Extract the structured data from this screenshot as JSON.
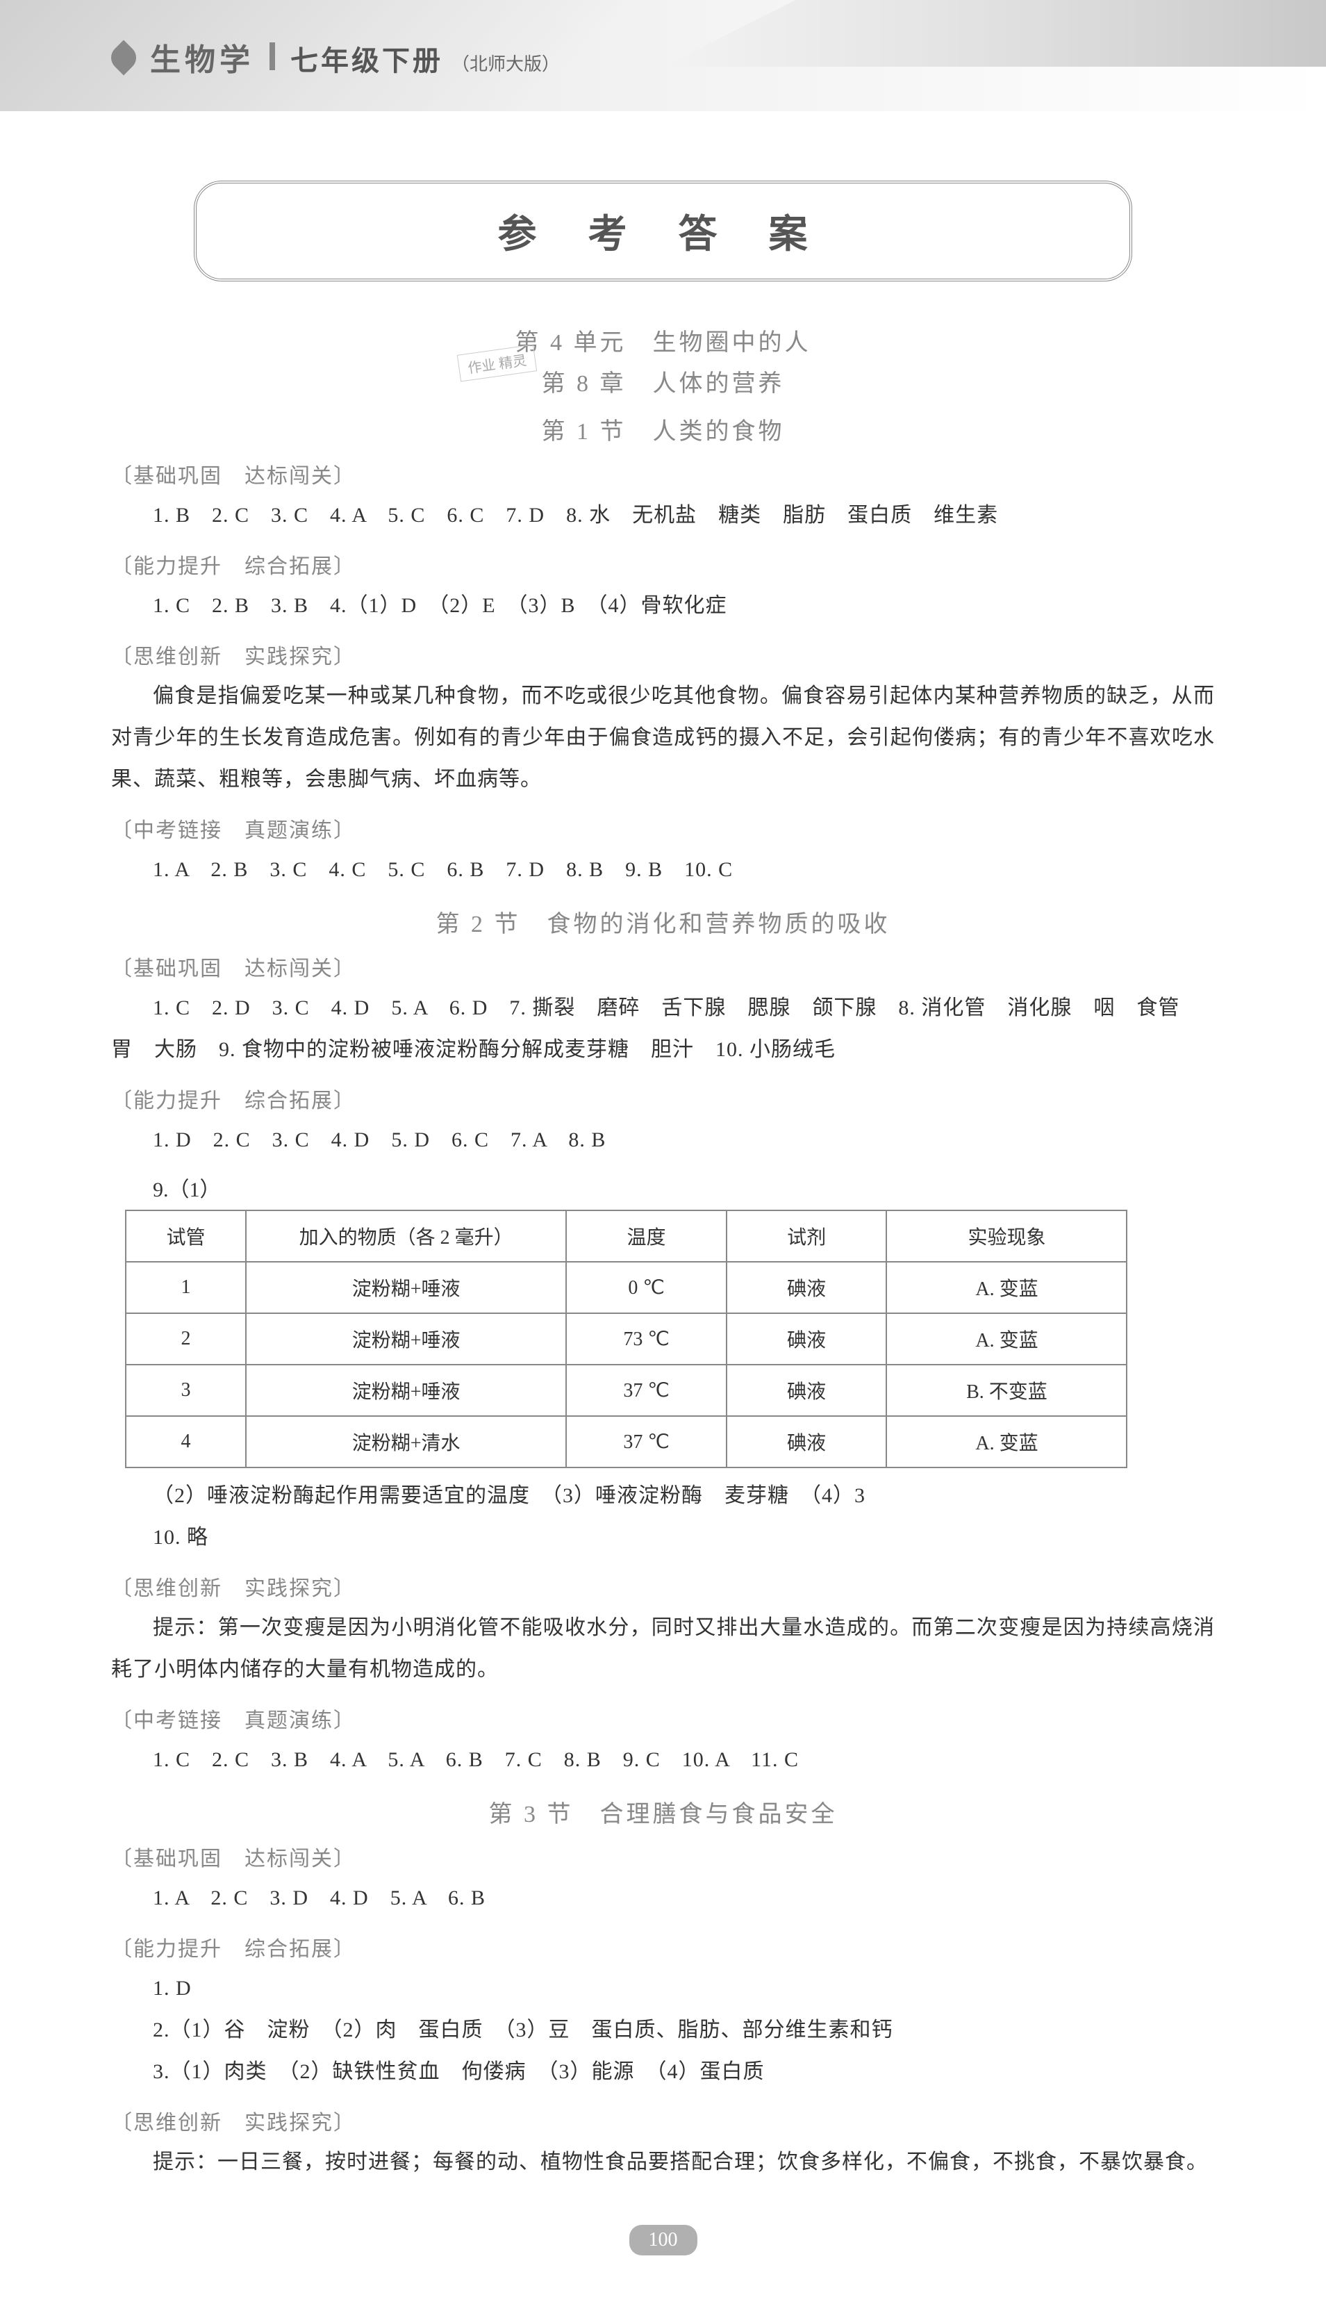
{
  "header": {
    "subject": "生物学",
    "grade": "七年级下册",
    "edition": "（北师大版）"
  },
  "mainTitle": "参 考 答 案",
  "stamp": "作业\n精灵",
  "unit": "第 4 单元　生物圈中的人",
  "chapter": "第 8 章　人体的营养",
  "sections": [
    {
      "title": "第 1 节　人类的食物",
      "blocks": [
        {
          "category": "〔基础巩固　达标闯关〕",
          "lines": [
            "1. B　2. C　3. C　4. A　5. C　6. C　7. D　8. 水　无机盐　糖类　脂肪　蛋白质　维生素"
          ]
        },
        {
          "category": "〔能力提升　综合拓展〕",
          "lines": [
            "1. C　2. B　3. B　4.（1）D　（2）E　（3）B　（4）骨软化症"
          ]
        },
        {
          "category": "〔思维创新　实践探究〕",
          "paragraphs": [
            "偏食是指偏爱吃某一种或某几种食物，而不吃或很少吃其他食物。偏食容易引起体内某种营养物质的缺乏，从而对青少年的生长发育造成危害。例如有的青少年由于偏食造成钙的摄入不足，会引起佝偻病；有的青少年不喜欢吃水果、蔬菜、粗粮等，会患脚气病、坏血病等。"
          ]
        },
        {
          "category": "〔中考链接　真题演练〕",
          "lines": [
            "1. A　2. B　3. C　4. C　5. C　6. B　7. D　8. B　9. B　10. C"
          ]
        }
      ]
    },
    {
      "title": "第 2 节　食物的消化和营养物质的吸收",
      "blocks": [
        {
          "category": "〔基础巩固　达标闯关〕",
          "lines": [
            "1. C　2. D　3. C　4. D　5. A　6. D　7. 撕裂　磨碎　舌下腺　腮腺　颌下腺　8. 消化管　消化腺　咽　食管　胃　大肠　9. 食物中的淀粉被唾液淀粉酶分解成麦芽糖　胆汁　10. 小肠绒毛"
          ]
        },
        {
          "category": "〔能力提升　综合拓展〕",
          "lines": [
            "1. D　2. C　3. C　4. D　5. D　6. C　7. A　8. B"
          ],
          "q9prefix": "9.（1）",
          "table": {
            "columns": [
              "试管",
              "加入的物质（各 2 毫升）",
              "温度",
              "试剂",
              "实验现象"
            ],
            "rows": [
              [
                "1",
                "淀粉糊+唾液",
                "0 ℃",
                "碘液",
                "A. 变蓝"
              ],
              [
                "2",
                "淀粉糊+唾液",
                "73 ℃",
                "碘液",
                "A. 变蓝"
              ],
              [
                "3",
                "淀粉糊+唾液",
                "37 ℃",
                "碘液",
                "B. 不变蓝"
              ],
              [
                "4",
                "淀粉糊+清水",
                "37 ℃",
                "碘液",
                "A. 变蓝"
              ]
            ],
            "col_widths": [
              "12%",
              "32%",
              "16%",
              "16%",
              "24%"
            ],
            "border_color": "#888888",
            "font_size": 28
          },
          "afterTable": [
            "（2）唾液淀粉酶起作用需要适宜的温度　（3）唾液淀粉酶　麦芽糖　（4）3",
            "10. 略"
          ]
        },
        {
          "category": "〔思维创新　实践探究〕",
          "paragraphs": [
            "提示：第一次变瘦是因为小明消化管不能吸收水分，同时又排出大量水造成的。而第二次变瘦是因为持续高烧消耗了小明体内储存的大量有机物造成的。"
          ]
        },
        {
          "category": "〔中考链接　真题演练〕",
          "lines": [
            "1. C　2. C　3. B　4. A　5. A　6. B　7. C　8. B　9. C　10. A　11. C"
          ]
        }
      ]
    },
    {
      "title": "第 3 节　合理膳食与食品安全",
      "blocks": [
        {
          "category": "〔基础巩固　达标闯关〕",
          "lines": [
            "1. A　2. C　3. D　4. D　5. A　6. B"
          ]
        },
        {
          "category": "〔能力提升　综合拓展〕",
          "lines": [
            "1. D",
            "2.（1）谷　淀粉　（2）肉　蛋白质　（3）豆　蛋白质、脂肪、部分维生素和钙",
            "3.（1）肉类　（2）缺铁性贫血　佝偻病　（3）能源　（4）蛋白质"
          ]
        },
        {
          "category": "〔思维创新　实践探究〕",
          "paragraphs": [
            "提示：一日三餐，按时进餐；每餐的动、植物性食品要搭配合理；饮食多样化，不偏食，不挑食，不暴饮暴食。"
          ]
        }
      ]
    }
  ],
  "pageNumber": "100",
  "colors": {
    "text_main": "#333333",
    "text_muted": "#888888",
    "header_fg": "#666666",
    "page_bg": "#ffffff",
    "pagenum_bg": "#b0b0b0"
  }
}
